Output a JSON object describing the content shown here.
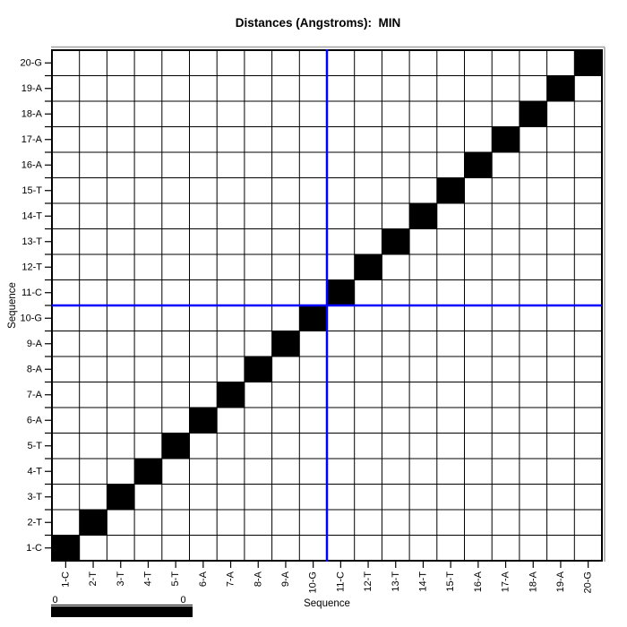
{
  "chart": {
    "title": "Distances (Angstroms):  MIN",
    "x_axis_label": "Sequence",
    "y_axis_label": "Sequence"
  },
  "colors": {
    "background": "#ffffff",
    "grid": "#000000",
    "frame": "#000000",
    "cell_fill": "#000000",
    "crosshair": "#0000ff",
    "frame_shadow": "#a0a0a0",
    "colorbar_fill": "#000000"
  },
  "chart_data": {
    "type": "heatmap",
    "title": "Distances (Angstroms):  MIN",
    "xlabel": "Sequence",
    "ylabel": "Sequence",
    "categories": [
      "1-C",
      "2-T",
      "3-T",
      "4-T",
      "5-T",
      "6-A",
      "7-A",
      "8-A",
      "9-A",
      "10-G",
      "11-C",
      "12-T",
      "13-T",
      "14-T",
      "15-T",
      "16-A",
      "17-A",
      "18-A",
      "19-A",
      "20-G"
    ],
    "data_points": [
      {
        "x": "1-C",
        "y": "1-C",
        "value": 0
      },
      {
        "x": "2-T",
        "y": "2-T",
        "value": 0
      },
      {
        "x": "3-T",
        "y": "3-T",
        "value": 0
      },
      {
        "x": "4-T",
        "y": "4-T",
        "value": 0
      },
      {
        "x": "5-T",
        "y": "5-T",
        "value": 0
      },
      {
        "x": "6-A",
        "y": "6-A",
        "value": 0
      },
      {
        "x": "7-A",
        "y": "7-A",
        "value": 0
      },
      {
        "x": "8-A",
        "y": "8-A",
        "value": 0
      },
      {
        "x": "9-A",
        "y": "9-A",
        "value": 0
      },
      {
        "x": "10-G",
        "y": "10-G",
        "value": 0
      },
      {
        "x": "11-C",
        "y": "11-C",
        "value": 0
      },
      {
        "x": "12-T",
        "y": "12-T",
        "value": 0
      },
      {
        "x": "13-T",
        "y": "13-T",
        "value": 0
      },
      {
        "x": "14-T",
        "y": "14-T",
        "value": 0
      },
      {
        "x": "15-T",
        "y": "15-T",
        "value": 0
      },
      {
        "x": "16-A",
        "y": "16-A",
        "value": 0
      },
      {
        "x": "17-A",
        "y": "17-A",
        "value": 0
      },
      {
        "x": "18-A",
        "y": "18-A",
        "value": 0
      },
      {
        "x": "19-A",
        "y": "19-A",
        "value": 0
      },
      {
        "x": "20-G",
        "y": "20-G",
        "value": 0
      }
    ],
    "crosshair": {
      "x_boundary_after": "10-G",
      "y_boundary_after": "10-G"
    },
    "colorbar": {
      "left_label": "0",
      "right_label": "0"
    },
    "grid": true,
    "legend_position": "bottom-left"
  }
}
